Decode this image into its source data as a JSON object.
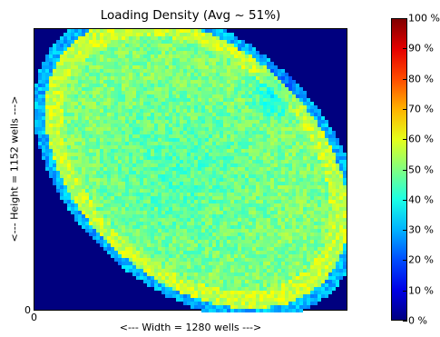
{
  "chart_data": {
    "type": "heatmap",
    "title": "Loading Density (Avg ~ 51%)",
    "xlabel": "<--- Width = 1280 wells --->",
    "ylabel": "<--- Height = 1152 wells --->",
    "x_ticks": [
      "0"
    ],
    "y_ticks": [
      "0"
    ],
    "colormap": "jet",
    "colorbar_range": [
      0,
      100
    ],
    "colorbar_ticks": [
      "0 %",
      "10 %",
      "20 %",
      "30 %",
      "40 %",
      "50 %",
      "60 %",
      "70 %",
      "80 %",
      "90 %",
      "100 %"
    ],
    "colorbar_values": [
      0,
      10,
      20,
      30,
      40,
      50,
      60,
      70,
      80,
      90,
      100
    ],
    "average_percent": 51,
    "background_value": 0
  }
}
